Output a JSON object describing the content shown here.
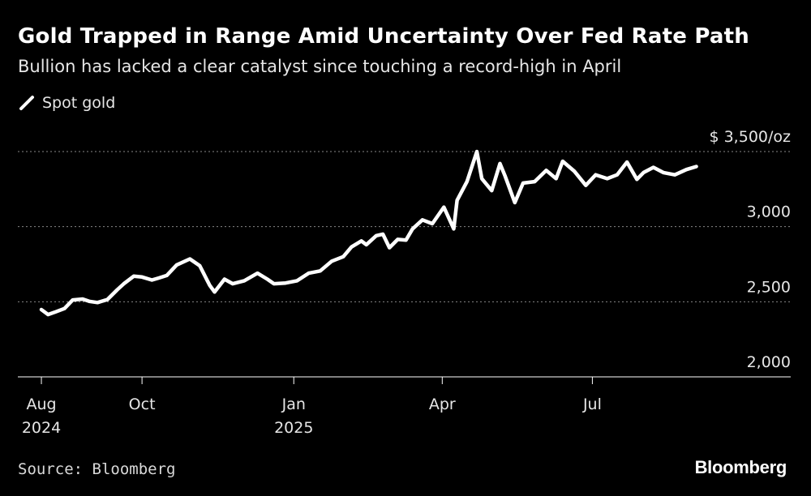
{
  "header": {
    "title": "Gold Trapped in Range Amid Uncertainty Over Fed Rate Path",
    "subtitle": "Bullion has lacked a clear catalyst since touching a record-high in April"
  },
  "legend": {
    "label": "Spot gold"
  },
  "footer": {
    "source": "Source: Bloomberg",
    "brand": "Bloomberg"
  },
  "colors": {
    "background": "#000000",
    "line": "#ffffff",
    "grid": "#888888",
    "text": "#e6e6e6"
  },
  "chart_data": {
    "type": "line",
    "title": "Gold Trapped in Range Amid Uncertainty Over Fed Rate Path",
    "subtitle": "Bullion has lacked a clear catalyst since touching a record-high in April",
    "xlabel": "",
    "ylabel": "",
    "ylim": [
      2000,
      3500
    ],
    "xlim": [
      "2024-07-31",
      "2025-09-15"
    ],
    "y_ticks": [
      {
        "value": 2000,
        "label": "2,000"
      },
      {
        "value": 2500,
        "label": "2,500"
      },
      {
        "value": 3000,
        "label": "3,000"
      },
      {
        "value": 3500,
        "label": "$ 3,500/oz"
      }
    ],
    "x_ticks": [
      {
        "date": "2024-08-01",
        "line1": "Aug",
        "line2": "2024"
      },
      {
        "date": "2024-10-01",
        "line1": "Oct",
        "line2": ""
      },
      {
        "date": "2025-01-01",
        "line1": "Jan",
        "line2": "2025"
      },
      {
        "date": "2025-04-01",
        "line1": "Apr",
        "line2": ""
      },
      {
        "date": "2025-07-01",
        "line1": "Jul",
        "line2": ""
      }
    ],
    "grid": true,
    "legend_position": "top-left",
    "series": [
      {
        "name": "Spot gold",
        "points": [
          [
            "2024-08-01",
            2448
          ],
          [
            "2024-08-05",
            2415
          ],
          [
            "2024-08-09",
            2430
          ],
          [
            "2024-08-15",
            2455
          ],
          [
            "2024-08-20",
            2512
          ],
          [
            "2024-08-26",
            2518
          ],
          [
            "2024-08-30",
            2503
          ],
          [
            "2024-09-04",
            2495
          ],
          [
            "2024-09-10",
            2515
          ],
          [
            "2024-09-16",
            2580
          ],
          [
            "2024-09-20",
            2620
          ],
          [
            "2024-09-26",
            2670
          ],
          [
            "2024-10-01",
            2665
          ],
          [
            "2024-10-07",
            2645
          ],
          [
            "2024-10-11",
            2658
          ],
          [
            "2024-10-16",
            2675
          ],
          [
            "2024-10-22",
            2745
          ],
          [
            "2024-10-30",
            2785
          ],
          [
            "2024-11-05",
            2740
          ],
          [
            "2024-11-11",
            2610
          ],
          [
            "2024-11-14",
            2565
          ],
          [
            "2024-11-20",
            2650
          ],
          [
            "2024-11-25",
            2620
          ],
          [
            "2024-12-02",
            2640
          ],
          [
            "2024-12-10",
            2690
          ],
          [
            "2024-12-16",
            2650
          ],
          [
            "2024-12-20",
            2620
          ],
          [
            "2024-12-27",
            2625
          ],
          [
            "2025-01-03",
            2640
          ],
          [
            "2025-01-10",
            2690
          ],
          [
            "2025-01-17",
            2705
          ],
          [
            "2025-01-24",
            2770
          ],
          [
            "2025-01-31",
            2800
          ],
          [
            "2025-02-05",
            2865
          ],
          [
            "2025-02-11",
            2905
          ],
          [
            "2025-02-14",
            2880
          ],
          [
            "2025-02-20",
            2940
          ],
          [
            "2025-02-24",
            2950
          ],
          [
            "2025-02-28",
            2860
          ],
          [
            "2025-03-05",
            2915
          ],
          [
            "2025-03-10",
            2910
          ],
          [
            "2025-03-14",
            2985
          ],
          [
            "2025-03-20",
            3045
          ],
          [
            "2025-03-26",
            3020
          ],
          [
            "2025-04-02",
            3130
          ],
          [
            "2025-04-08",
            2985
          ],
          [
            "2025-04-10",
            3175
          ],
          [
            "2025-04-16",
            3300
          ],
          [
            "2025-04-22",
            3500
          ],
          [
            "2025-04-25",
            3320
          ],
          [
            "2025-05-01",
            3240
          ],
          [
            "2025-05-06",
            3420
          ],
          [
            "2025-05-09",
            3340
          ],
          [
            "2025-05-15",
            3160
          ],
          [
            "2025-05-20",
            3290
          ],
          [
            "2025-05-27",
            3300
          ],
          [
            "2025-06-03",
            3375
          ],
          [
            "2025-06-09",
            3320
          ],
          [
            "2025-06-13",
            3435
          ],
          [
            "2025-06-20",
            3370
          ],
          [
            "2025-06-27",
            3275
          ],
          [
            "2025-07-03",
            3345
          ],
          [
            "2025-07-10",
            3320
          ],
          [
            "2025-07-16",
            3345
          ],
          [
            "2025-07-22",
            3430
          ],
          [
            "2025-07-28",
            3315
          ],
          [
            "2025-08-01",
            3360
          ],
          [
            "2025-08-07",
            3395
          ],
          [
            "2025-08-13",
            3360
          ],
          [
            "2025-08-20",
            3345
          ],
          [
            "2025-08-27",
            3380
          ],
          [
            "2025-09-02",
            3400
          ]
        ]
      }
    ]
  }
}
